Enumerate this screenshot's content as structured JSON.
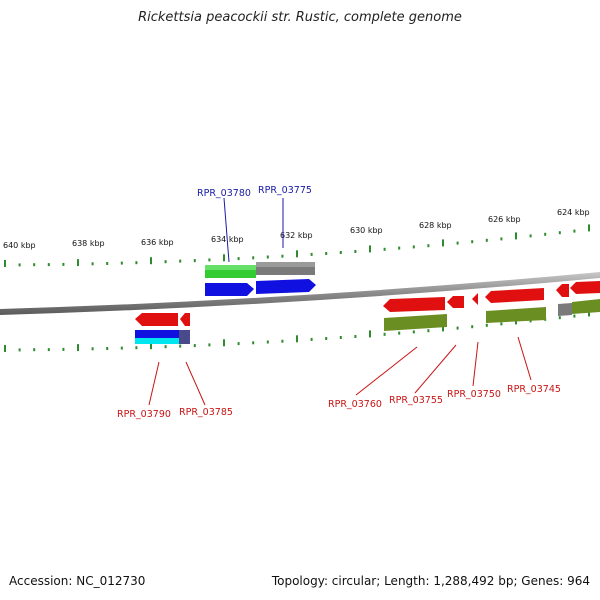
{
  "title": "Rickettsia peacockii str. Rustic, complete genome",
  "footer": {
    "accession": "Accession: NC_012730",
    "summary": "Topology: circular; Length: 1,288,492 bp; Genes: 964"
  },
  "scale_labels": [
    "640 kbp",
    "638 kbp",
    "636 kbp",
    "634 kbp",
    "632 kbp",
    "630 kbp",
    "628 kbp",
    "626 kbp",
    "624 kbp"
  ],
  "colors": {
    "backbone": "#8a8a8a",
    "tick": "#2e8b2e",
    "gene_forward": "#1010e0",
    "gene_reverse": "#e01010",
    "cog_green": "#33cc33",
    "cog_gray": "#7a7a7a",
    "cog_olive": "#6b8e23",
    "cog_cyan": "#00e5ee",
    "label_forward": "#1a1aa8",
    "label_reverse": "#c81414"
  },
  "genes_forward": [
    {
      "label": "RPR_03780"
    },
    {
      "label": "RPR_03775"
    }
  ],
  "genes_reverse": [
    {
      "label": "RPR_03790"
    },
    {
      "label": "RPR_03785"
    },
    {
      "label": "RPR_03760"
    },
    {
      "label": "RPR_03755"
    },
    {
      "label": "RPR_03750"
    },
    {
      "label": "RPR_03745"
    }
  ]
}
